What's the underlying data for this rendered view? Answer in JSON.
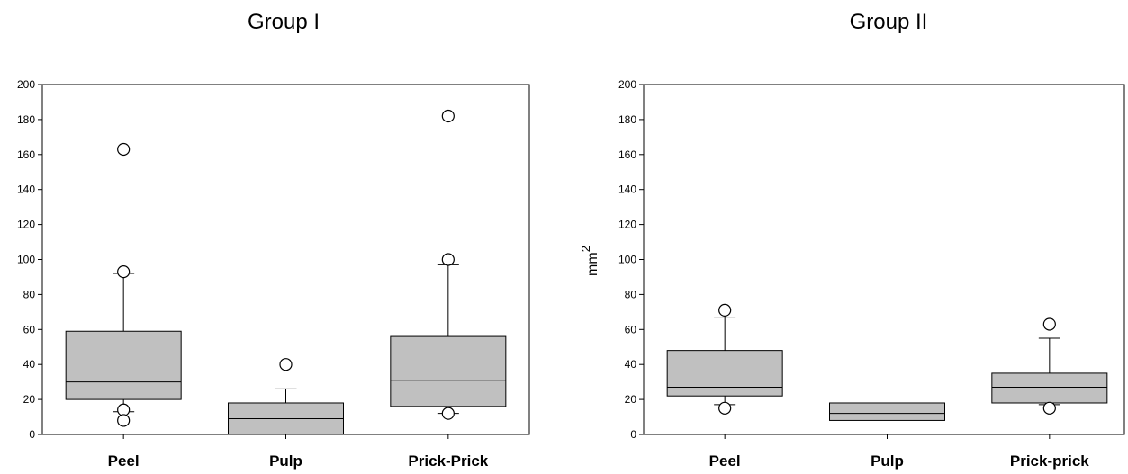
{
  "chart_data": [
    {
      "type": "box",
      "title": "Group I",
      "ylabel": "",
      "ylim": [
        0,
        200
      ],
      "yticks": [
        0,
        20,
        40,
        60,
        80,
        100,
        120,
        140,
        160,
        180,
        200
      ],
      "categories": [
        "Peel",
        "Pulp",
        "Prick-Prick"
      ],
      "boxes": [
        {
          "q1": 20,
          "median": 30,
          "q3": 59,
          "whisker_low": 13,
          "whisker_high": 92,
          "outliers": [
            163,
            93,
            14,
            8
          ]
        },
        {
          "q1": 0,
          "median": 9,
          "q3": 18,
          "whisker_low": 0,
          "whisker_high": 26,
          "outliers": [
            40
          ]
        },
        {
          "q1": 16,
          "median": 31,
          "q3": 56,
          "whisker_low": 12,
          "whisker_high": 97,
          "outliers": [
            182,
            100,
            12
          ]
        }
      ]
    },
    {
      "type": "box",
      "title": "Group II",
      "ylabel": "mm",
      "ylabel_superscript": "2",
      "ylim": [
        0,
        200
      ],
      "yticks": [
        0,
        20,
        40,
        60,
        80,
        100,
        120,
        140,
        160,
        180,
        200
      ],
      "categories": [
        "Peel",
        "Pulp",
        "Prick-prick"
      ],
      "boxes": [
        {
          "q1": 22,
          "median": 27,
          "q3": 48,
          "whisker_low": 17,
          "whisker_high": 67,
          "outliers": [
            71,
            15
          ]
        },
        {
          "q1": 8,
          "median": 12,
          "q3": 18,
          "whisker_low": 8,
          "whisker_high": 18,
          "outliers": []
        },
        {
          "q1": 18,
          "median": 27,
          "q3": 35,
          "whisker_low": 17,
          "whisker_high": 55,
          "outliers": [
            63,
            15
          ]
        }
      ]
    }
  ]
}
